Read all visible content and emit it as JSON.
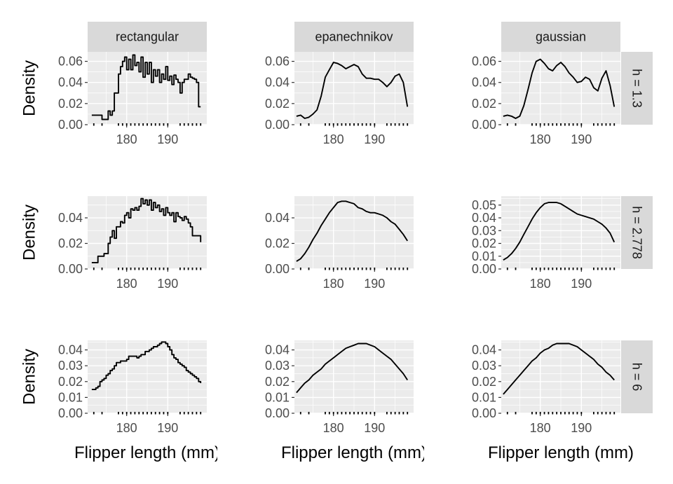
{
  "figure": {
    "x_title": "Flipper length (mm)",
    "y_title": "Density"
  },
  "chart_data": {
    "type": "line",
    "layout": "facet_grid",
    "columns": [
      "rectangular",
      "epanechnikov",
      "gaussian"
    ],
    "rows": [
      "h = 1.3",
      "h = 2.778",
      "h = 6"
    ],
    "x_ticks": [
      180,
      190
    ],
    "xlim": [
      170.5,
      199.5
    ],
    "rug_x": [
      172,
      174,
      178,
      179,
      180,
      181,
      182,
      183,
      184,
      185,
      186,
      187,
      188,
      189,
      190,
      193,
      194,
      195,
      196,
      197,
      198
    ],
    "rows_scales": [
      {
        "ylim": [
          0,
          0.069
        ],
        "y_ticks": [
          0,
          0.02,
          0.04,
          0.06
        ],
        "y_tick_labels": [
          "0.00",
          "0.02",
          "0.04",
          "0.06"
        ]
      },
      {
        "ylim": [
          0,
          0.057
        ],
        "y_ticks": [
          0,
          0.02,
          0.04
        ],
        "y_tick_labels": [
          "0.00",
          "0.02",
          "0.04"
        ]
      },
      {
        "ylim": [
          0,
          0.046
        ],
        "y_ticks": [
          0,
          0.01,
          0.02,
          0.03,
          0.04
        ],
        "y_tick_labels": [
          "0.00",
          "0.01",
          "0.02",
          "0.03",
          "0.04"
        ]
      }
    ],
    "gaussian_h2778_scale": {
      "ylim": [
        0,
        0.057
      ],
      "y_ticks": [
        0,
        0.01,
        0.02,
        0.03,
        0.04,
        0.05
      ],
      "y_tick_labels": [
        "0.00",
        "0.01",
        "0.02",
        "0.03",
        "0.04",
        "0.05"
      ]
    },
    "panels": [
      {
        "column": "rectangular",
        "row": "h = 1.3",
        "step": true,
        "x": [
          171.5,
          173.5,
          174,
          175,
          175.5,
          176,
          176.5,
          177,
          178,
          178.5,
          179,
          179.5,
          180,
          180.5,
          181,
          181.5,
          182,
          182.5,
          183,
          183.5,
          184,
          184.5,
          185,
          185.5,
          186,
          186.5,
          187,
          187.5,
          188,
          188.5,
          189,
          189.5,
          190,
          190.5,
          191,
          191.5,
          192,
          192.5,
          193,
          193.5,
          194,
          194.5,
          195,
          195.5,
          196,
          196.5,
          197,
          197.5,
          198
        ],
        "y": [
          0.009,
          0.009,
          0.005,
          0.005,
          0.013,
          0.009,
          0.013,
          0.03,
          0.048,
          0.055,
          0.06,
          0.064,
          0.052,
          0.062,
          0.052,
          0.066,
          0.056,
          0.059,
          0.05,
          0.064,
          0.045,
          0.059,
          0.048,
          0.059,
          0.04,
          0.052,
          0.046,
          0.052,
          0.04,
          0.048,
          0.043,
          0.055,
          0.042,
          0.046,
          0.038,
          0.047,
          0.043,
          0.04,
          0.03,
          0.04,
          0.043,
          0.043,
          0.048,
          0.045,
          0.044,
          0.043,
          0.04,
          0.017,
          0.017
        ]
      },
      {
        "column": "epanechnikov",
        "row": "h = 1.3",
        "step": false,
        "x": [
          171,
          172,
          173,
          174,
          175,
          176,
          177,
          178,
          179,
          180,
          181,
          182,
          183,
          184,
          185,
          186,
          187,
          188,
          189,
          190,
          191,
          192,
          193,
          194,
          195,
          196,
          197,
          198
        ],
        "y": [
          0.008,
          0.009,
          0.006,
          0.007,
          0.01,
          0.014,
          0.027,
          0.045,
          0.052,
          0.059,
          0.058,
          0.056,
          0.053,
          0.055,
          0.057,
          0.055,
          0.048,
          0.044,
          0.044,
          0.043,
          0.043,
          0.04,
          0.036,
          0.04,
          0.046,
          0.048,
          0.04,
          0.017
        ]
      },
      {
        "column": "gaussian",
        "row": "h = 1.3",
        "step": false,
        "x": [
          171,
          172,
          173,
          174,
          175,
          176,
          177,
          178,
          179,
          180,
          181,
          182,
          183,
          184,
          185,
          186,
          187,
          188,
          189,
          190,
          191,
          192,
          193,
          194,
          195,
          196,
          197,
          198
        ],
        "y": [
          0.008,
          0.009,
          0.008,
          0.006,
          0.008,
          0.018,
          0.033,
          0.049,
          0.06,
          0.062,
          0.058,
          0.053,
          0.051,
          0.056,
          0.059,
          0.055,
          0.049,
          0.045,
          0.04,
          0.041,
          0.045,
          0.043,
          0.035,
          0.032,
          0.044,
          0.051,
          0.037,
          0.017
        ]
      },
      {
        "column": "rectangular",
        "row": "h = 2.778",
        "step": true,
        "x": [
          171.5,
          172.5,
          173,
          174,
          174.5,
          175.5,
          176,
          176.5,
          177,
          177.5,
          178,
          178.5,
          179,
          179.5,
          180,
          180.5,
          181,
          181.5,
          182,
          182.5,
          183,
          183.5,
          184,
          184.5,
          185,
          185.5,
          186,
          186.5,
          187,
          187.5,
          188,
          188.5,
          189,
          189.5,
          190,
          190.5,
          191,
          191.5,
          192,
          192.5,
          193,
          193.5,
          194,
          194.5,
          195,
          195.5,
          196,
          196.5,
          197,
          197.5,
          198
        ],
        "y": [
          0.005,
          0.005,
          0.01,
          0.01,
          0.012,
          0.02,
          0.025,
          0.03,
          0.024,
          0.033,
          0.033,
          0.037,
          0.036,
          0.042,
          0.044,
          0.04,
          0.047,
          0.046,
          0.048,
          0.046,
          0.049,
          0.055,
          0.051,
          0.054,
          0.05,
          0.054,
          0.046,
          0.052,
          0.048,
          0.05,
          0.045,
          0.047,
          0.042,
          0.048,
          0.044,
          0.042,
          0.044,
          0.037,
          0.044,
          0.041,
          0.04,
          0.038,
          0.041,
          0.039,
          0.036,
          0.033,
          0.026,
          0.026,
          0.026,
          0.026,
          0.021
        ]
      },
      {
        "column": "epanechnikov",
        "row": "h = 2.778",
        "step": false,
        "x": [
          171,
          172,
          173,
          174,
          175,
          176,
          177,
          178,
          179,
          180,
          181,
          182,
          183,
          184,
          185,
          186,
          187,
          188,
          189,
          190,
          191,
          192,
          193,
          194,
          195,
          196,
          197,
          198
        ],
        "y": [
          0.006,
          0.008,
          0.012,
          0.017,
          0.023,
          0.028,
          0.034,
          0.039,
          0.044,
          0.048,
          0.052,
          0.053,
          0.053,
          0.052,
          0.051,
          0.048,
          0.047,
          0.045,
          0.044,
          0.044,
          0.043,
          0.042,
          0.04,
          0.037,
          0.035,
          0.031,
          0.027,
          0.022
        ]
      },
      {
        "column": "gaussian",
        "row": "h = 2.778",
        "step": false,
        "x": [
          171,
          172,
          173,
          174,
          175,
          176,
          177,
          178,
          179,
          180,
          181,
          182,
          183,
          184,
          185,
          186,
          187,
          188,
          189,
          190,
          191,
          192,
          193,
          194,
          195,
          196,
          197,
          198
        ],
        "y": [
          0.007,
          0.009,
          0.012,
          0.016,
          0.021,
          0.027,
          0.033,
          0.039,
          0.044,
          0.048,
          0.051,
          0.052,
          0.052,
          0.052,
          0.051,
          0.049,
          0.047,
          0.045,
          0.043,
          0.042,
          0.041,
          0.04,
          0.039,
          0.037,
          0.035,
          0.032,
          0.028,
          0.021
        ]
      },
      {
        "column": "rectangular",
        "row": "h = 6",
        "step": true,
        "x": [
          171.5,
          172.5,
          173,
          173.5,
          174,
          174.5,
          175,
          175.5,
          176,
          176.5,
          177,
          177.5,
          178,
          178.5,
          179,
          179.5,
          180,
          180.5,
          181,
          181.5,
          182,
          182.5,
          183,
          183.5,
          184,
          184.5,
          185,
          185.5,
          186,
          186.5,
          187,
          187.5,
          188,
          188.5,
          189,
          189.5,
          190,
          190.5,
          191,
          191.5,
          192,
          192.5,
          193,
          193.5,
          194,
          194.5,
          195,
          195.5,
          196,
          196.5,
          197,
          197.5,
          198
        ],
        "y": [
          0.015,
          0.016,
          0.017,
          0.02,
          0.021,
          0.022,
          0.024,
          0.025,
          0.027,
          0.028,
          0.03,
          0.032,
          0.032,
          0.033,
          0.033,
          0.033,
          0.034,
          0.036,
          0.036,
          0.036,
          0.036,
          0.035,
          0.036,
          0.037,
          0.037,
          0.039,
          0.039,
          0.04,
          0.041,
          0.042,
          0.042,
          0.043,
          0.044,
          0.045,
          0.045,
          0.044,
          0.042,
          0.04,
          0.037,
          0.035,
          0.034,
          0.032,
          0.031,
          0.03,
          0.029,
          0.027,
          0.026,
          0.025,
          0.024,
          0.023,
          0.022,
          0.02,
          0.019
        ]
      },
      {
        "column": "epanechnikov",
        "row": "h = 6",
        "step": false,
        "x": [
          171,
          172,
          173,
          174,
          175,
          176,
          177,
          178,
          179,
          180,
          181,
          182,
          183,
          184,
          185,
          186,
          187,
          188,
          189,
          190,
          191,
          192,
          193,
          194,
          195,
          196,
          197,
          198
        ],
        "y": [
          0.013,
          0.016,
          0.019,
          0.021,
          0.024,
          0.026,
          0.028,
          0.031,
          0.033,
          0.035,
          0.037,
          0.039,
          0.041,
          0.042,
          0.043,
          0.044,
          0.044,
          0.044,
          0.043,
          0.042,
          0.04,
          0.038,
          0.036,
          0.034,
          0.031,
          0.028,
          0.025,
          0.021
        ]
      },
      {
        "column": "gaussian",
        "row": "h = 6",
        "step": false,
        "x": [
          171,
          172,
          173,
          174,
          175,
          176,
          177,
          178,
          179,
          180,
          181,
          182,
          183,
          184,
          185,
          186,
          187,
          188,
          189,
          190,
          191,
          192,
          193,
          194,
          195,
          196,
          197,
          198
        ],
        "y": [
          0.012,
          0.015,
          0.018,
          0.021,
          0.024,
          0.027,
          0.03,
          0.033,
          0.035,
          0.038,
          0.04,
          0.041,
          0.043,
          0.044,
          0.044,
          0.044,
          0.044,
          0.043,
          0.042,
          0.04,
          0.038,
          0.036,
          0.034,
          0.031,
          0.029,
          0.026,
          0.024,
          0.021
        ]
      }
    ]
  }
}
